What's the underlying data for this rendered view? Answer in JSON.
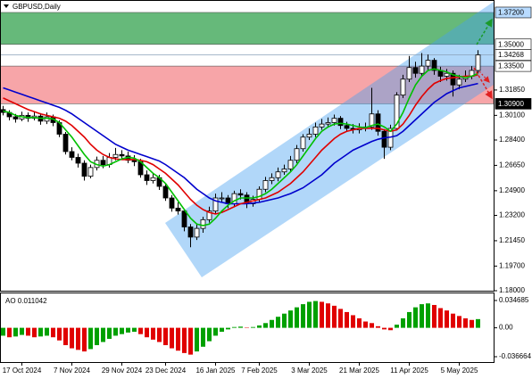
{
  "chart_data": [
    {
      "type": "candlestick",
      "title": "GBPUSD,Daily",
      "categories": [
        null,
        null,
        null,
        "17 Oct 2024",
        null,
        null,
        null,
        null,
        null,
        null,
        null,
        "7 Nov 2024",
        null,
        null,
        null,
        null,
        null,
        null,
        null,
        "29 Nov 2024",
        null,
        null,
        null,
        null,
        null,
        null,
        "23 Dec 2024",
        null,
        null,
        null,
        null,
        null,
        null,
        null,
        "16 Jan 2025",
        null,
        null,
        null,
        null,
        null,
        null,
        "7 Feb 2025",
        null,
        null,
        null,
        null,
        null,
        null,
        null,
        "3 Mar 2025",
        null,
        null,
        null,
        null,
        null,
        null,
        null,
        "21 Mar 2025",
        null,
        null,
        null,
        null,
        null,
        null,
        null,
        "11 Apr 2025",
        null,
        null,
        null,
        null,
        null,
        null,
        null,
        "5 May 2025",
        null,
        null,
        null
      ],
      "open": [
        1.305,
        1.303,
        1.3,
        1.2985,
        1.301,
        1.299,
        1.3005,
        1.297,
        1.3,
        1.296,
        1.288,
        1.276,
        1.272,
        1.268,
        1.259,
        1.265,
        1.27,
        1.267,
        1.272,
        1.274,
        1.273,
        1.27,
        1.269,
        1.26,
        1.256,
        1.258,
        1.252,
        1.244,
        1.237,
        1.235,
        1.224,
        1.217,
        1.223,
        1.229,
        1.235,
        1.244,
        1.244,
        1.24,
        1.247,
        1.246,
        1.24,
        1.243,
        1.25,
        1.256,
        1.258,
        1.262,
        1.264,
        1.27,
        1.278,
        1.286,
        1.288,
        1.293,
        1.295,
        1.296,
        1.299,
        1.294,
        1.292,
        1.291,
        1.292,
        1.293,
        1.302,
        1.29,
        1.279,
        1.292,
        1.315,
        1.326,
        1.334,
        1.33,
        1.335,
        1.339,
        1.332,
        1.328,
        1.33,
        1.322,
        1.326,
        1.328,
        1.332
      ],
      "high": [
        1.3075,
        1.3045,
        1.302,
        1.3035,
        1.303,
        1.304,
        1.3025,
        1.303,
        1.3015,
        1.2975,
        1.2895,
        1.279,
        1.2745,
        1.27,
        1.267,
        1.2725,
        1.273,
        1.275,
        1.2785,
        1.277,
        1.276,
        1.2735,
        1.271,
        1.263,
        1.261,
        1.26,
        1.2535,
        1.246,
        1.241,
        1.2365,
        1.226,
        1.2255,
        1.231,
        1.238,
        1.247,
        1.248,
        1.246,
        1.249,
        1.25,
        1.248,
        1.2455,
        1.252,
        1.2585,
        1.261,
        1.265,
        1.267,
        1.273,
        1.2805,
        1.288,
        1.292,
        1.296,
        1.2985,
        1.2995,
        1.3015,
        1.3005,
        1.2965,
        1.295,
        1.2955,
        1.296,
        1.32,
        1.3045,
        1.2915,
        1.2945,
        1.317,
        1.329,
        1.342,
        1.338,
        1.344,
        1.343,
        1.3405,
        1.3345,
        1.333,
        1.332,
        1.329,
        1.332,
        1.335,
        1.346
      ],
      "low": [
        1.301,
        1.2975,
        1.296,
        1.297,
        1.2965,
        1.2975,
        1.2945,
        1.295,
        1.2935,
        1.286,
        1.274,
        1.27,
        1.265,
        1.256,
        1.2575,
        1.263,
        1.2645,
        1.265,
        1.27,
        1.2705,
        1.268,
        1.266,
        1.258,
        1.253,
        1.254,
        1.2495,
        1.242,
        1.2345,
        1.2325,
        1.221,
        1.21,
        1.215,
        1.22,
        1.227,
        1.233,
        1.241,
        1.237,
        1.238,
        1.243,
        1.237,
        1.238,
        1.241,
        1.248,
        1.2535,
        1.2555,
        1.26,
        1.262,
        1.268,
        1.276,
        1.284,
        1.286,
        1.291,
        1.2925,
        1.294,
        1.2915,
        1.2895,
        1.2885,
        1.2885,
        1.29,
        1.291,
        1.287,
        1.271,
        1.277,
        1.2905,
        1.313,
        1.324,
        1.327,
        1.328,
        1.332,
        1.329,
        1.324,
        1.325,
        1.314,
        1.319,
        1.324,
        1.326,
        1.33
      ],
      "close": [
        1.303,
        1.3,
        1.2985,
        1.301,
        1.299,
        1.3005,
        1.297,
        1.3,
        1.296,
        1.288,
        1.276,
        1.272,
        1.268,
        1.259,
        1.265,
        1.27,
        1.267,
        1.272,
        1.274,
        1.273,
        1.27,
        1.269,
        1.26,
        1.256,
        1.258,
        1.252,
        1.244,
        1.237,
        1.235,
        1.224,
        1.217,
        1.223,
        1.229,
        1.235,
        1.244,
        1.244,
        1.24,
        1.247,
        1.246,
        1.24,
        1.243,
        1.25,
        1.256,
        1.258,
        1.262,
        1.264,
        1.27,
        1.278,
        1.286,
        1.288,
        1.293,
        1.295,
        1.296,
        1.299,
        1.294,
        1.292,
        1.291,
        1.292,
        1.293,
        1.302,
        1.29,
        1.279,
        1.292,
        1.315,
        1.326,
        1.334,
        1.33,
        1.335,
        1.339,
        1.332,
        1.328,
        1.33,
        1.322,
        1.326,
        1.328,
        1.332,
        1.34268
      ],
      "up_color": "#ffffff",
      "down_color": "#000000",
      "lines": [
        {
          "color": "#0000cc",
          "values": [
            1.32,
            1.3185,
            1.317,
            1.3155,
            1.314,
            1.3125,
            1.311,
            1.3095,
            1.308,
            1.3065,
            1.3045,
            1.302,
            1.299,
            1.296,
            1.293,
            1.29,
            1.287,
            1.284,
            1.281,
            1.279,
            1.277,
            1.2755,
            1.274,
            1.2725,
            1.271,
            1.2695,
            1.267,
            1.264,
            1.261,
            1.258,
            1.254,
            1.25,
            1.247,
            1.244,
            1.242,
            1.241,
            1.24,
            1.24,
            1.24,
            1.24,
            1.2405,
            1.241,
            1.242,
            1.243,
            1.244,
            1.2455,
            1.247,
            1.249,
            1.251,
            1.254,
            1.257,
            1.26,
            1.264,
            1.268,
            1.271,
            1.274,
            1.277,
            1.279,
            1.281,
            1.283,
            1.2845,
            1.2855,
            1.286,
            1.287,
            1.29,
            1.294,
            1.298,
            1.302,
            1.306,
            1.31,
            1.313,
            1.316,
            1.318,
            1.32,
            1.321,
            1.322,
            1.323
          ]
        },
        {
          "color": "#e00000",
          "values": [
            1.313,
            1.311,
            1.309,
            1.307,
            1.305,
            1.3035,
            1.302,
            1.301,
            1.3,
            1.299,
            1.297,
            1.294,
            1.29,
            1.286,
            1.281,
            1.277,
            1.274,
            1.272,
            1.271,
            1.2705,
            1.2705,
            1.2705,
            1.27,
            1.269,
            1.267,
            1.264,
            1.261,
            1.257,
            1.253,
            1.248,
            1.243,
            1.239,
            1.236,
            1.234,
            1.233,
            1.234,
            1.236,
            1.238,
            1.24,
            1.241,
            1.242,
            1.243,
            1.244,
            1.246,
            1.248,
            1.251,
            1.254,
            1.258,
            1.262,
            1.267,
            1.272,
            1.277,
            1.281,
            1.285,
            1.288,
            1.29,
            1.291,
            1.292,
            1.292,
            1.292,
            1.292,
            1.291,
            1.29,
            1.291,
            1.295,
            1.301,
            1.308,
            1.314,
            1.319,
            1.323,
            1.325,
            1.3265,
            1.327,
            1.3275,
            1.328,
            1.328,
            1.329
          ]
        },
        {
          "color": "#00c000",
          "values": [
            1.304,
            1.303,
            1.301,
            1.3,
            1.2995,
            1.2995,
            1.299,
            1.299,
            1.2985,
            1.296,
            1.291,
            1.286,
            1.28,
            1.274,
            1.269,
            1.267,
            1.266,
            1.267,
            1.269,
            1.271,
            1.272,
            1.2715,
            1.269,
            1.265,
            1.261,
            1.258,
            1.254,
            1.248,
            1.242,
            1.236,
            1.23,
            1.226,
            1.225,
            1.226,
            1.23,
            1.235,
            1.239,
            1.242,
            1.244,
            1.244,
            1.244,
            1.245,
            1.247,
            1.25,
            1.254,
            1.258,
            1.262,
            1.267,
            1.273,
            1.279,
            1.285,
            1.29,
            1.293,
            1.295,
            1.2955,
            1.295,
            1.294,
            1.293,
            1.2925,
            1.294,
            1.295,
            1.293,
            1.29,
            1.295,
            1.303,
            1.313,
            1.322,
            1.328,
            1.332,
            1.333,
            1.332,
            1.331,
            1.329,
            1.328,
            1.327,
            1.328,
            1.33
          ]
        }
      ],
      "zones": [
        {
          "from": {
            "value": 1.35,
            "label": "1.35000"
          },
          "to": {
            "value": 1.372,
            "label": "1.37200"
          },
          "color": "#66b97a"
        },
        {
          "from": {
            "value": 1.309,
            "label": "1.30900"
          },
          "to": {
            "value": 1.335,
            "label": "1.33500"
          },
          "color": "#f7a5a8"
        }
      ],
      "last_price": {
        "value": 1.34268,
        "label": "1.34268"
      },
      "ylim": [
        1.18,
        1.3806
      ],
      "yticks": [
        {
          "value": 1.3185,
          "label": "1.31850"
        },
        {
          "value": 1.301,
          "label": "1.30100"
        },
        {
          "value": 1.284,
          "label": "1.28400"
        },
        {
          "value": 1.2665,
          "label": "1.26650"
        },
        {
          "value": 1.249,
          "label": "1.24900"
        },
        {
          "value": 1.232,
          "label": "1.23200"
        },
        {
          "value": 1.2145,
          "label": "1.21450"
        },
        {
          "value": 1.197,
          "label": "1.19700"
        },
        {
          "value": 1.18,
          "label": "1.18000"
        }
      ]
    },
    {
      "type": "bar",
      "title": "AO 0.011042",
      "values": [
        -0.01,
        -0.012,
        -0.011,
        -0.009,
        -0.01,
        -0.012,
        -0.011,
        -0.01,
        -0.012,
        -0.016,
        -0.022,
        -0.026,
        -0.028,
        -0.03,
        -0.027,
        -0.022,
        -0.018,
        -0.014,
        -0.01,
        -0.008,
        -0.006,
        -0.005,
        -0.008,
        -0.012,
        -0.015,
        -0.018,
        -0.022,
        -0.026,
        -0.029,
        -0.032,
        -0.034,
        -0.03,
        -0.024,
        -0.017,
        -0.01,
        -0.005,
        -0.002,
        0.001,
        0.0015,
        0.0005,
        0.001,
        0.003,
        0.006,
        0.01,
        0.014,
        0.018,
        0.022,
        0.026,
        0.03,
        0.033,
        0.034,
        0.033,
        0.031,
        0.028,
        0.024,
        0.02,
        0.016,
        0.012,
        0.008,
        0.006,
        0.002,
        -0.002,
        -0.003,
        0.004,
        0.012,
        0.02,
        0.026,
        0.03,
        0.031,
        0.029,
        0.025,
        0.022,
        0.018,
        0.015,
        0.012,
        0.01,
        0.011042
      ],
      "up_color": "#00a000",
      "down_color": "#e00000",
      "ylim": [
        -0.0446,
        0.0437
      ],
      "yticks": [
        0.034685,
        {
          "value": 0,
          "label": "0.00"
        },
        -0.036664
      ]
    }
  ]
}
